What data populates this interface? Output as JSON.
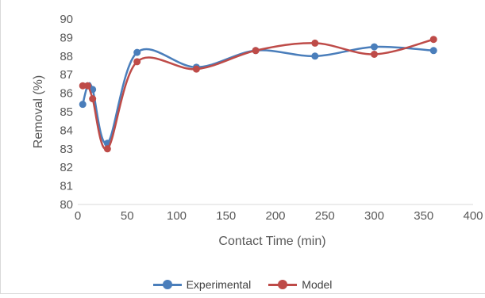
{
  "chart_data": {
    "type": "line",
    "title": "",
    "xlabel": "Contact Time (min)",
    "ylabel": "Removal (%)",
    "xlim": [
      0,
      400
    ],
    "ylim": [
      80,
      90
    ],
    "xticks": [
      0,
      50,
      100,
      150,
      200,
      250,
      300,
      350,
      400
    ],
    "yticks": [
      80,
      81,
      82,
      83,
      84,
      85,
      86,
      87,
      88,
      89,
      90
    ],
    "legend_position": "bottom",
    "grid": false,
    "smooth": true,
    "series": [
      {
        "name": "Experimental",
        "color": "#4a7ebb",
        "x": [
          5,
          10,
          15,
          30,
          60,
          120,
          180,
          240,
          300,
          360
        ],
        "y": [
          85.4,
          86.4,
          86.2,
          83.3,
          88.2,
          87.4,
          88.3,
          88.0,
          88.5,
          88.3
        ]
      },
      {
        "name": "Model",
        "color": "#be4b48",
        "x": [
          5,
          10,
          15,
          30,
          60,
          120,
          180,
          240,
          300,
          360
        ],
        "y": [
          86.4,
          86.4,
          85.7,
          83.0,
          87.7,
          87.3,
          88.3,
          88.7,
          88.1,
          88.9
        ]
      }
    ]
  }
}
